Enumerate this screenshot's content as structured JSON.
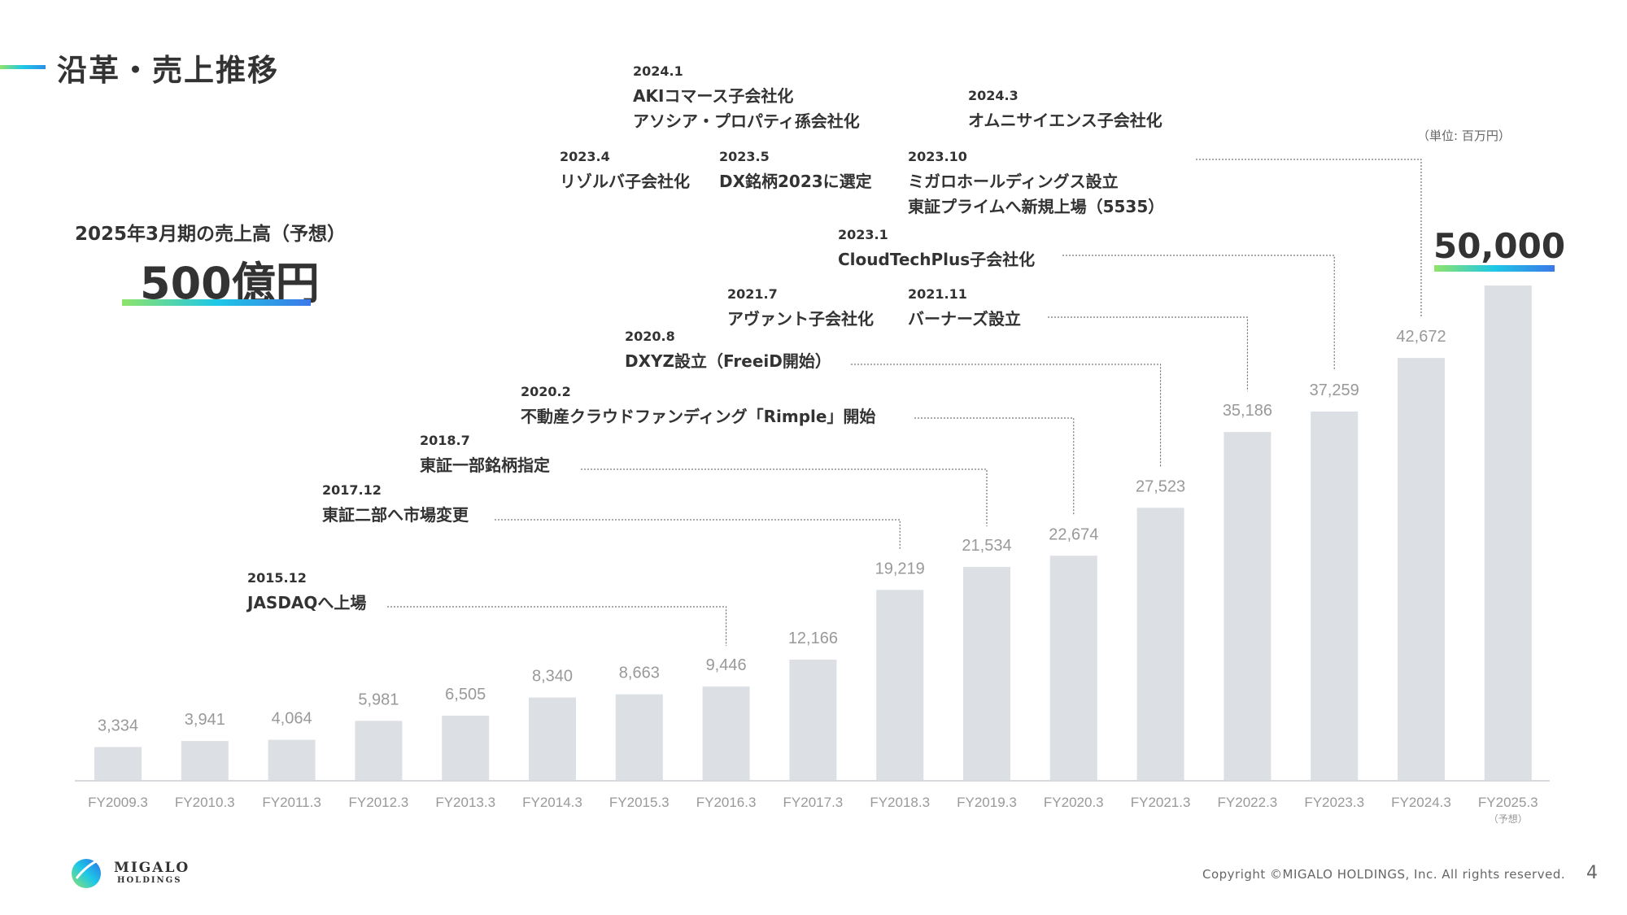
{
  "header": {
    "title": "沿革・売上推移"
  },
  "forecast": {
    "label": "2025年3月期の売上高（予想）",
    "value": "500億円"
  },
  "unit_note": "（単位: 百万円）",
  "last_value_label": "50,000",
  "events": [
    {
      "date": "2015.12",
      "lines": [
        "JASDAQへ上場"
      ]
    },
    {
      "date": "2017.12",
      "lines": [
        "東証二部へ市場変更"
      ]
    },
    {
      "date": "2018.7",
      "lines": [
        "東証一部銘柄指定"
      ]
    },
    {
      "date": "2020.2",
      "lines": [
        "不動産クラウドファンディング「Rimple」開始"
      ]
    },
    {
      "date": "2020.8",
      "lines": [
        "DXYZ設立（FreeiD開始）"
      ]
    },
    {
      "date": "2021.7",
      "lines": [
        "アヴァント子会社化"
      ]
    },
    {
      "date": "2021.11",
      "lines": [
        "バーナーズ設立"
      ]
    },
    {
      "date": "2023.1",
      "lines": [
        "CloudTechPlus子会社化"
      ]
    },
    {
      "date": "2023.4",
      "lines": [
        "リゾルバ子会社化"
      ]
    },
    {
      "date": "2023.5",
      "lines": [
        "DX銘柄2023に選定"
      ]
    },
    {
      "date": "2023.10",
      "lines": [
        "ミガロホールディングス設立",
        "東証プライムへ新規上場（5535）"
      ]
    },
    {
      "date": "2024.1",
      "lines": [
        "AKIコマース子会社化",
        "アソシア・プロパティ孫会社化"
      ]
    },
    {
      "date": "2024.3",
      "lines": [
        "オムニサイエンス子会社化"
      ]
    }
  ],
  "chart_data": {
    "type": "bar",
    "categories": [
      "FY2009.3",
      "FY2010.3",
      "FY2011.3",
      "FY2012.3",
      "FY2013.3",
      "FY2014.3",
      "FY2015.3",
      "FY2016.3",
      "FY2017.3",
      "FY2018.3",
      "FY2019.3",
      "FY2020.3",
      "FY2021.3",
      "FY2022.3",
      "FY2023.3",
      "FY2024.3",
      "FY2025.3"
    ],
    "category_notes": [
      "",
      "",
      "",
      "",
      "",
      "",
      "",
      "",
      "",
      "",
      "",
      "",
      "",
      "",
      "",
      "",
      "（予想）"
    ],
    "values": [
      3334,
      3941,
      4064,
      5981,
      6505,
      8340,
      8663,
      9446,
      12166,
      19219,
      21534,
      22674,
      27523,
      35186,
      37259,
      42672,
      50000
    ],
    "value_labels": [
      "3,334",
      "3,941",
      "4,064",
      "5,981",
      "6,505",
      "8,340",
      "8,663",
      "9,446",
      "12,166",
      "19,219",
      "21,534",
      "22,674",
      "27,523",
      "35,186",
      "37,259",
      "42,672",
      ""
    ],
    "ylim": [
      0,
      50000
    ],
    "bar_color": "#dcdfe3",
    "label_color": "#999999",
    "grid": false
  },
  "footer": {
    "copyright": "Copyright ©MIGALO HOLDINGS, Inc. All rights reserved.",
    "page_number": "4",
    "logo_line1": "MIGALO",
    "logo_line2": "HOLDINGS"
  }
}
